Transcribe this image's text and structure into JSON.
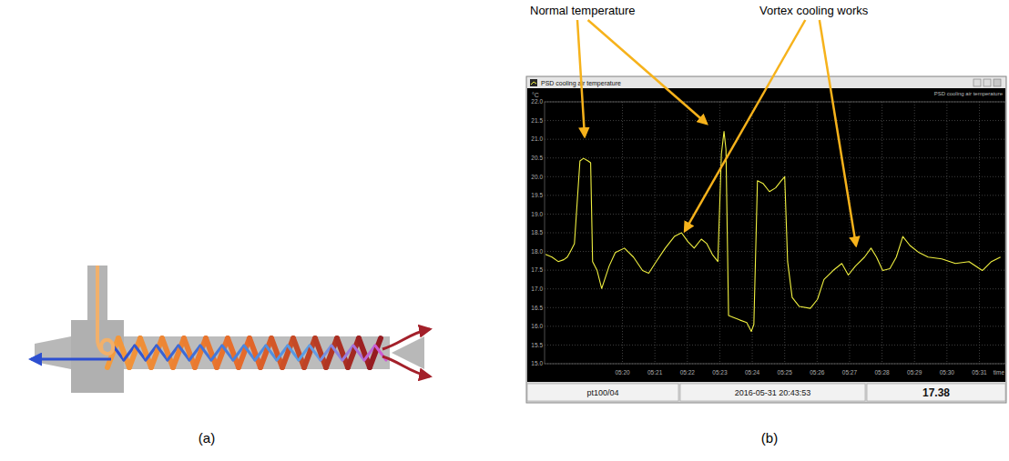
{
  "panel_labels": [
    "(a)",
    "(b)"
  ],
  "annotations": [
    "Normal temperature",
    "Vortex cooling works"
  ],
  "window": {
    "title": "PSD cooling air temperature",
    "subtitle": "PSD cooling air temperature",
    "status": [
      "pt100/04",
      "2016-05-31 20:43:53",
      "17.38"
    ]
  },
  "chart_data": {
    "type": "line",
    "y_label": "°C",
    "x_label": "time",
    "x": [
      17.63,
      17.83,
      18.02,
      18.19,
      18.3,
      18.38,
      18.52,
      18.69,
      18.8,
      18.94,
      19.02,
      19.08,
      19.22,
      19.36,
      19.59,
      19.78,
      20.06,
      20.34,
      20.62,
      20.81,
      21.04,
      21.32,
      21.6,
      21.82,
      22.02,
      22.21,
      22.43,
      22.6,
      22.77,
      22.94,
      23.05,
      23.13,
      23.19,
      23.27,
      23.41,
      23.61,
      23.83,
      23.97,
      24.05,
      24.16,
      24.33,
      24.53,
      24.72,
      24.89,
      25.0,
      25.09,
      25.23,
      25.45,
      25.79,
      26.01,
      26.21,
      26.49,
      26.76,
      26.96,
      27.18,
      27.46,
      27.66,
      27.83,
      28.02,
      28.24,
      28.44,
      28.64,
      28.86,
      29.14,
      29.42,
      29.84,
      30.26,
      30.68,
      31.09,
      31.37,
      31.65
    ],
    "series": [
      {
        "color": "#f0f040",
        "values": [
          17.92,
          17.85,
          17.73,
          17.78,
          17.85,
          17.97,
          18.21,
          20.42,
          20.49,
          20.42,
          20.37,
          17.73,
          17.49,
          17.01,
          17.61,
          17.97,
          18.09,
          17.85,
          17.49,
          17.42,
          17.73,
          18.09,
          18.4,
          18.5,
          18.26,
          18.09,
          18.33,
          18.21,
          17.92,
          17.73,
          20.61,
          21.21,
          20.73,
          16.29,
          16.24,
          16.17,
          16.1,
          15.86,
          16.05,
          19.89,
          19.82,
          19.6,
          19.7,
          19.89,
          20.0,
          17.73,
          16.77,
          16.53,
          16.48,
          16.72,
          17.25,
          17.49,
          17.68,
          17.37,
          17.61,
          17.85,
          18.09,
          17.85,
          17.49,
          17.54,
          17.85,
          18.4,
          18.16,
          17.97,
          17.85,
          17.8,
          17.68,
          17.73,
          17.49,
          17.73,
          17.85
        ]
      }
    ],
    "xlim": [
      17.6,
      31.8
    ],
    "xticks": [
      {
        "value": 20,
        "label": "05:20"
      },
      {
        "value": 21,
        "label": "05:21"
      },
      {
        "value": 22,
        "label": "05:22"
      },
      {
        "value": 23,
        "label": "05:23"
      },
      {
        "value": 24,
        "label": "05:24"
      },
      {
        "value": 25,
        "label": "05:25"
      },
      {
        "value": 26,
        "label": "05:26"
      },
      {
        "value": 27,
        "label": "05:27"
      },
      {
        "value": 28,
        "label": "05:28"
      },
      {
        "value": 29,
        "label": "05:29"
      },
      {
        "value": 30,
        "label": "05:30"
      },
      {
        "value": 31,
        "label": "05:31"
      }
    ],
    "ylim": [
      15,
      22
    ],
    "yticks": [
      {
        "value": 15,
        "label": "15.0"
      },
      {
        "value": 15.5,
        "label": "15.5"
      },
      {
        "value": 16,
        "label": "16.0"
      },
      {
        "value": 16.5,
        "label": "16.5"
      },
      {
        "value": 17,
        "label": "17.0"
      },
      {
        "value": 17.5,
        "label": "17.5"
      },
      {
        "value": 18,
        "label": "18.0"
      },
      {
        "value": 18.5,
        "label": "18.5"
      },
      {
        "value": 19,
        "label": "19.0"
      },
      {
        "value": 19.5,
        "label": "19.5"
      },
      {
        "value": 20,
        "label": "20.0"
      },
      {
        "value": 20.5,
        "label": "20.5"
      },
      {
        "value": 21,
        "label": "21.0"
      },
      {
        "value": 21.5,
        "label": "21.5"
      },
      {
        "value": 22,
        "label": "22.0"
      }
    ],
    "grid": true
  }
}
